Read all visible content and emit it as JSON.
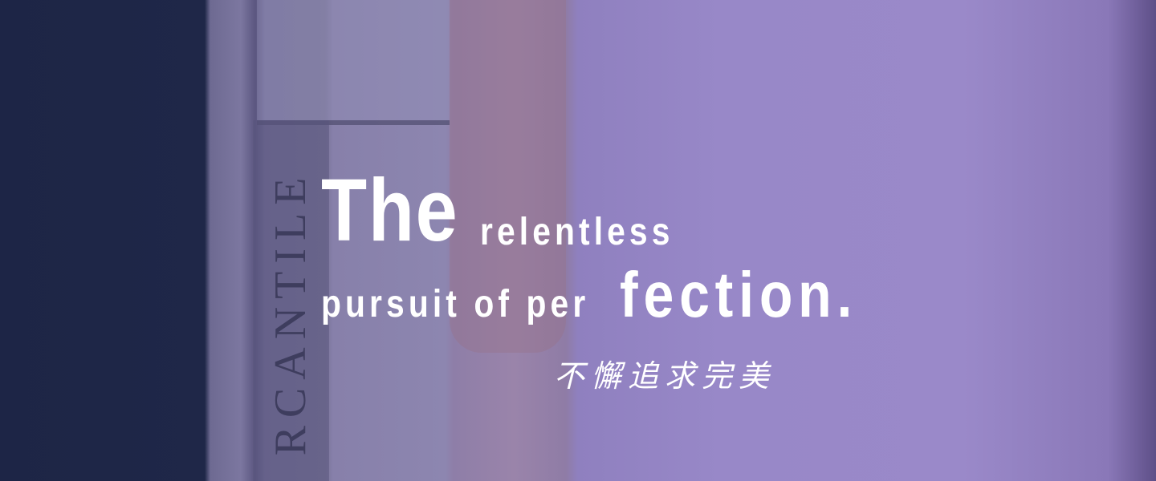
{
  "hero": {
    "headline": {
      "first_word": "The",
      "second_word": "relentless",
      "line2_start": "pursuit of per",
      "line2_end": "fection."
    },
    "subtitle": "不懈追求完美",
    "background_text": "RCANTILE"
  }
}
